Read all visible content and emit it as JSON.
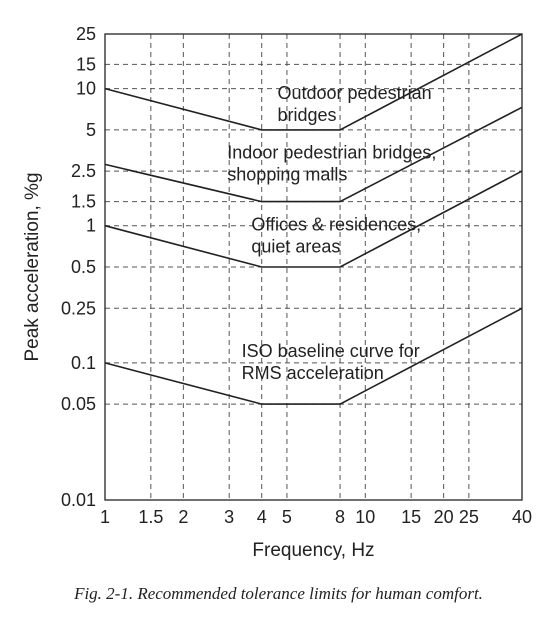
{
  "caption": "Fig. 2-1.  Recommended tolerance limits for human comfort.",
  "chart_data": {
    "type": "line",
    "title": "",
    "xlabel": "Frequency, Hz",
    "ylabel": "Peak acceleration, %g",
    "xscale": "log",
    "yscale": "log",
    "xlim": [
      1,
      40
    ],
    "ylim": [
      0.01,
      25
    ],
    "grid": true,
    "xticks": [
      1,
      1.5,
      2,
      3,
      4,
      5,
      8,
      10,
      15,
      20,
      25,
      40
    ],
    "xtick_labels": [
      "1",
      "1.5",
      "2",
      "3",
      "4",
      "5",
      "8",
      "10",
      "15",
      "20",
      "25",
      "40"
    ],
    "yticks": [
      0.01,
      0.05,
      0.1,
      0.25,
      0.5,
      1,
      1.5,
      2.5,
      5,
      10,
      15,
      25
    ],
    "ytick_labels": [
      "0.01",
      "0.05",
      "0.1",
      "0.25",
      "0.5",
      "1",
      "1.5",
      "2.5",
      "5",
      "10",
      "15",
      "25"
    ],
    "series": [
      {
        "x": [
          1,
          4,
          8,
          40
        ],
        "y": [
          10,
          5,
          5,
          25
        ]
      },
      {
        "x": [
          1,
          4,
          8,
          40
        ],
        "y": [
          2.8,
          1.5,
          1.5,
          7.3
        ]
      },
      {
        "x": [
          1,
          4,
          8,
          40
        ],
        "y": [
          1,
          0.5,
          0.5,
          2.5
        ]
      },
      {
        "x": [
          1,
          4,
          8,
          40
        ],
        "y": [
          0.1,
          0.05,
          0.05,
          0.25
        ]
      }
    ],
    "annotations": [
      {
        "lines": [
          "Outdoor pedestrian",
          "bridges"
        ],
        "x": 4.6,
        "y": 8.4
      },
      {
        "lines": [
          "Indoor pedestrian bridges,",
          "shopping malls"
        ],
        "x": 2.95,
        "y": 3.1
      },
      {
        "lines": [
          "Offices & residences,",
          "quiet areas"
        ],
        "x": 3.65,
        "y": 0.92
      },
      {
        "lines": [
          "ISO baseline curve for",
          "RMS acceleration"
        ],
        "x": 3.35,
        "y": 0.11
      }
    ]
  }
}
